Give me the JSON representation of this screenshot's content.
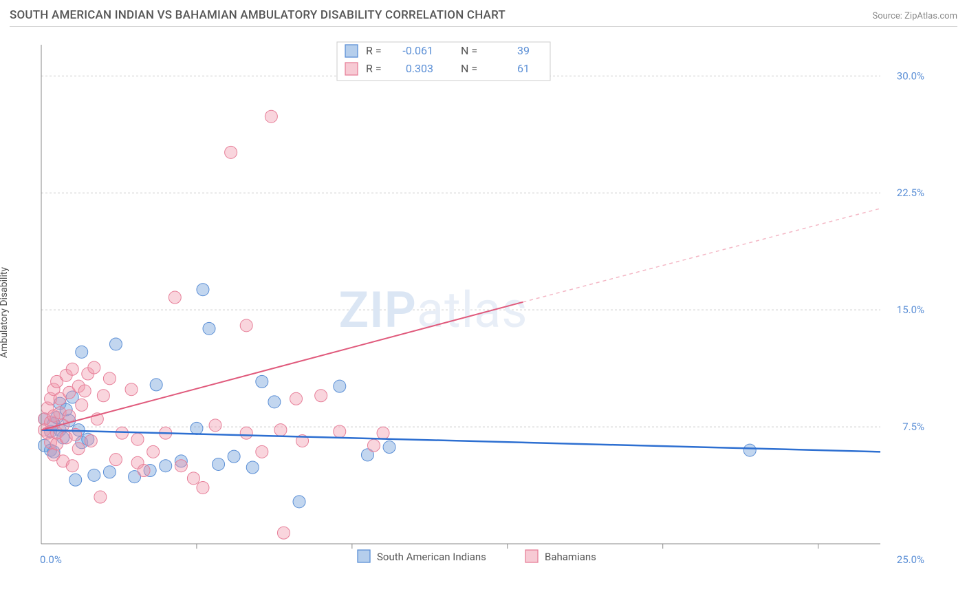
{
  "header": {
    "title": "SOUTH AMERICAN INDIAN VS BAHAMIAN AMBULATORY DISABILITY CORRELATION CHART",
    "source": "Source: ZipAtlas.com"
  },
  "ylabel": "Ambulatory Disability",
  "watermark": {
    "part1": "ZIP",
    "part2": "atlas"
  },
  "chart": {
    "type": "scatter",
    "xlim": [
      0,
      27
    ],
    "ylim": [
      0,
      32
    ],
    "xtick_origin": "0.0%",
    "xtick_end": "25.0%",
    "yticks": [
      {
        "v": 7.5,
        "label": "7.5%"
      },
      {
        "v": 15.0,
        "label": "15.0%"
      },
      {
        "v": 22.5,
        "label": "22.5%"
      },
      {
        "v": 30.0,
        "label": "30.0%"
      }
    ],
    "xticks_minor": [
      5,
      10,
      15,
      20,
      25
    ],
    "marker_radius": 9,
    "background_color": "#ffffff",
    "grid_color": "#cccccc",
    "series": [
      {
        "name": "South American Indians",
        "color_fill": "rgba(120,165,220,0.45)",
        "color_stroke": "#5b8fd6",
        "trend_color": "#2d6fd1",
        "R": "-0.061",
        "N": "39",
        "trend": {
          "x1": 0,
          "y1": 7.3,
          "x2": 27,
          "y2": 5.9
        },
        "points": [
          [
            0.1,
            8.0
          ],
          [
            0.1,
            6.3
          ],
          [
            0.3,
            7.2
          ],
          [
            0.3,
            6.0
          ],
          [
            0.4,
            7.7
          ],
          [
            0.4,
            5.9
          ],
          [
            0.5,
            8.1
          ],
          [
            0.6,
            7.3
          ],
          [
            0.6,
            9.0
          ],
          [
            0.7,
            6.8
          ],
          [
            0.8,
            8.6
          ],
          [
            0.9,
            7.9
          ],
          [
            1.0,
            9.4
          ],
          [
            1.1,
            4.1
          ],
          [
            1.2,
            7.3
          ],
          [
            1.3,
            6.5
          ],
          [
            1.3,
            12.3
          ],
          [
            1.5,
            6.7
          ],
          [
            1.7,
            4.4
          ],
          [
            2.2,
            4.6
          ],
          [
            2.4,
            12.8
          ],
          [
            3.0,
            4.3
          ],
          [
            3.5,
            4.7
          ],
          [
            3.7,
            10.2
          ],
          [
            4.0,
            5.0
          ],
          [
            4.5,
            5.3
          ],
          [
            5.0,
            7.4
          ],
          [
            5.2,
            16.3
          ],
          [
            5.4,
            13.8
          ],
          [
            5.7,
            5.1
          ],
          [
            6.2,
            5.6
          ],
          [
            6.8,
            4.9
          ],
          [
            7.1,
            10.4
          ],
          [
            7.5,
            9.1
          ],
          [
            8.3,
            2.7
          ],
          [
            9.6,
            10.1
          ],
          [
            10.5,
            5.7
          ],
          [
            11.2,
            6.2
          ],
          [
            22.8,
            6.0
          ]
        ]
      },
      {
        "name": "Bahamians",
        "color_fill": "rgba(240,150,170,0.40)",
        "color_stroke": "#e77f99",
        "trend_color": "#e05a7c",
        "R": "0.303",
        "N": "61",
        "trend_solid": {
          "x1": 0,
          "y1": 7.3,
          "x2": 15.5,
          "y2": 15.5
        },
        "trend_dash": {
          "x1": 15.5,
          "y1": 15.5,
          "x2": 27,
          "y2": 21.5
        },
        "points": [
          [
            0.1,
            8.0
          ],
          [
            0.1,
            7.3
          ],
          [
            0.2,
            8.7
          ],
          [
            0.2,
            7.1
          ],
          [
            0.3,
            9.3
          ],
          [
            0.3,
            6.5
          ],
          [
            0.3,
            7.8
          ],
          [
            0.4,
            8.2
          ],
          [
            0.4,
            9.9
          ],
          [
            0.4,
            5.7
          ],
          [
            0.5,
            7.1
          ],
          [
            0.5,
            10.4
          ],
          [
            0.5,
            6.4
          ],
          [
            0.6,
            8.4
          ],
          [
            0.6,
            9.3
          ],
          [
            0.7,
            5.3
          ],
          [
            0.7,
            7.6
          ],
          [
            0.8,
            10.8
          ],
          [
            0.8,
            6.8
          ],
          [
            0.9,
            9.7
          ],
          [
            0.9,
            8.2
          ],
          [
            1.0,
            11.2
          ],
          [
            1.0,
            5.0
          ],
          [
            1.1,
            7.0
          ],
          [
            1.2,
            10.1
          ],
          [
            1.2,
            6.1
          ],
          [
            1.3,
            8.9
          ],
          [
            1.4,
            9.8
          ],
          [
            1.5,
            10.9
          ],
          [
            1.6,
            6.6
          ],
          [
            1.7,
            11.3
          ],
          [
            1.8,
            8.0
          ],
          [
            1.9,
            3.0
          ],
          [
            2.0,
            9.5
          ],
          [
            2.2,
            10.6
          ],
          [
            2.4,
            5.4
          ],
          [
            2.6,
            7.1
          ],
          [
            2.9,
            9.9
          ],
          [
            3.1,
            5.2
          ],
          [
            3.1,
            6.7
          ],
          [
            3.3,
            4.7
          ],
          [
            3.6,
            5.9
          ],
          [
            4.0,
            7.1
          ],
          [
            4.3,
            15.8
          ],
          [
            4.5,
            5.0
          ],
          [
            4.9,
            4.2
          ],
          [
            5.2,
            3.6
          ],
          [
            5.6,
            7.6
          ],
          [
            6.1,
            25.1
          ],
          [
            6.6,
            14.0
          ],
          [
            6.6,
            7.1
          ],
          [
            7.1,
            5.9
          ],
          [
            7.4,
            27.4
          ],
          [
            7.7,
            7.3
          ],
          [
            7.8,
            0.7
          ],
          [
            8.2,
            9.3
          ],
          [
            8.4,
            6.6
          ],
          [
            9.0,
            9.5
          ],
          [
            9.6,
            7.2
          ],
          [
            10.7,
            6.3
          ],
          [
            11.0,
            7.1
          ]
        ]
      }
    ],
    "legend_top": {
      "rows": [
        {
          "swatch": "blue",
          "R_label": "R =",
          "R_val": "-0.061",
          "N_label": "N =",
          "N_val": "39"
        },
        {
          "swatch": "pink",
          "R_label": "R =",
          "R_val": "0.303",
          "N_label": "N =",
          "N_val": "61"
        }
      ]
    },
    "legend_bottom": {
      "items": [
        {
          "swatch": "blue",
          "label": "South American Indians"
        },
        {
          "swatch": "pink",
          "label": "Bahamians"
        }
      ]
    }
  }
}
